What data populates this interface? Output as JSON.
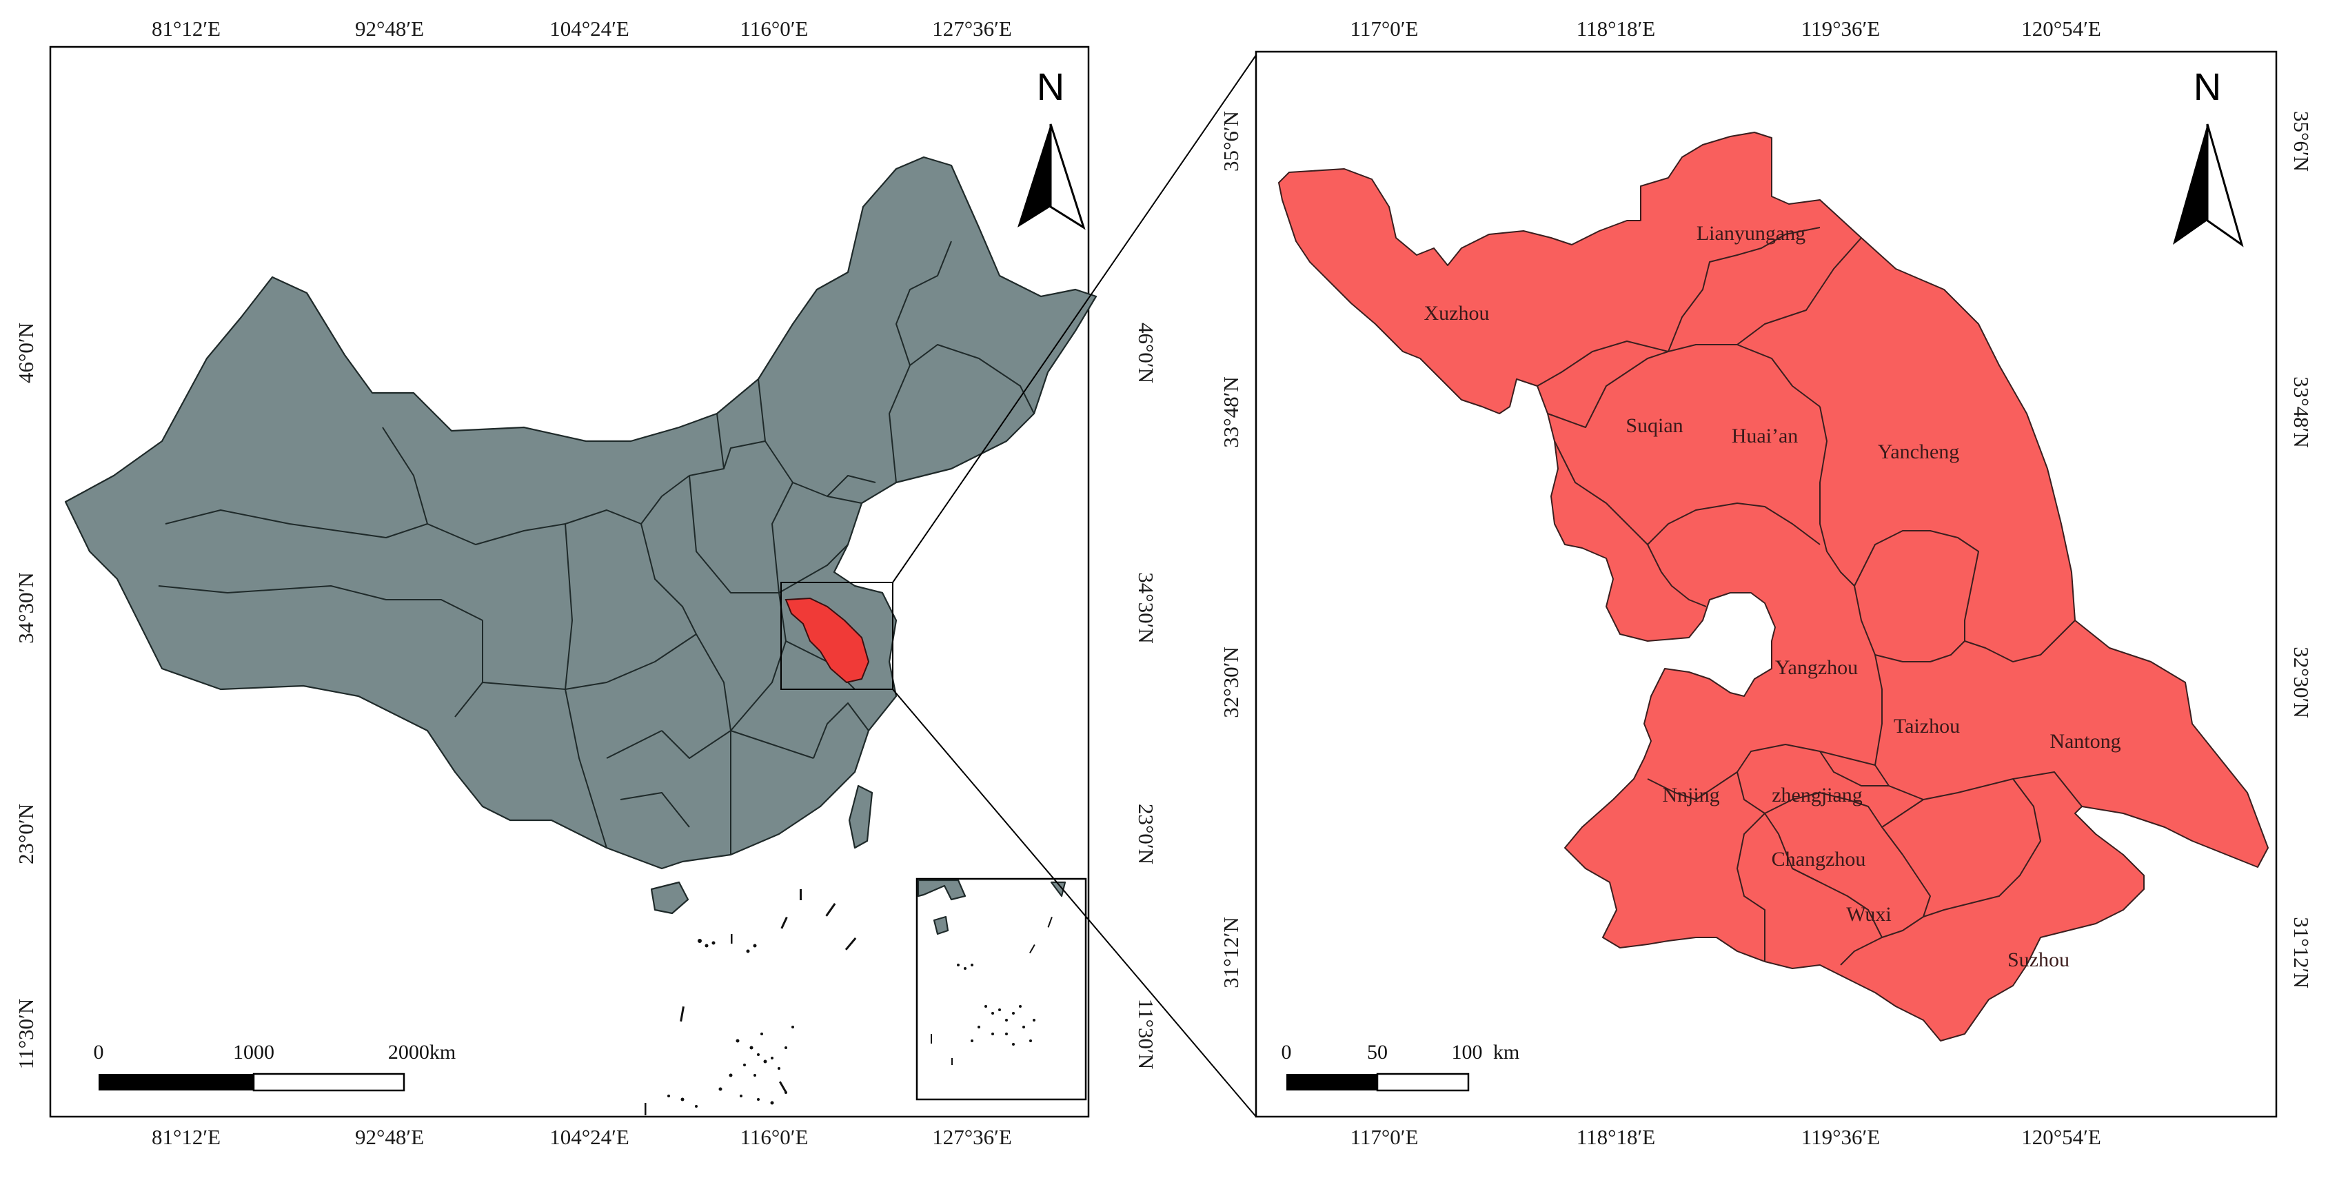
{
  "china_map": {
    "x_ticks": [
      "81°12′E",
      "92°48′E",
      "104°24′E",
      "116°0′E",
      "127°36′E"
    ],
    "y_ticks": [
      "46°0′N",
      "34°30′N",
      "23°0′N",
      "11°30′N"
    ],
    "north_label": "N",
    "scale_labels": [
      "0",
      "1000",
      "2000km"
    ],
    "fill_color": "#788a8c",
    "highlight_color": "#f03a37"
  },
  "jiangsu_map": {
    "x_ticks": [
      "117°0′E",
      "118°18′E",
      "119°36′E",
      "120°54′E"
    ],
    "y_ticks": [
      "35°6′N",
      "33°48′N",
      "32°30′N",
      "31°12′N"
    ],
    "north_label": "N",
    "scale_labels": [
      "0",
      "50",
      "100",
      "km"
    ],
    "fill_color": "#f95f5d",
    "cities": [
      "Lianyungang",
      "Xuzhou",
      "Suqian",
      "Huai’an",
      "Yancheng",
      "Yangzhou",
      "Taizhou",
      "Nantong",
      "Nnjing",
      "zhengjiang",
      "Changzhou",
      "Wuxi",
      "Suzhou"
    ]
  }
}
